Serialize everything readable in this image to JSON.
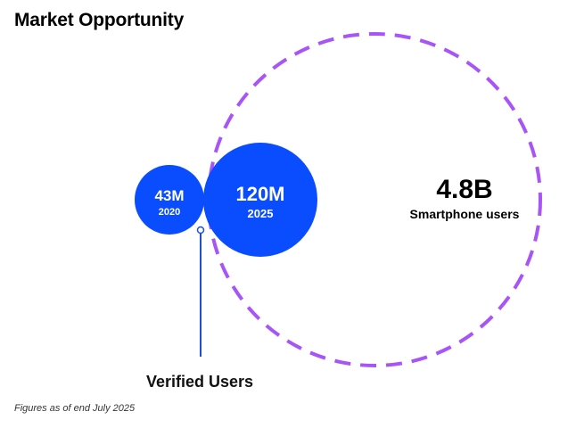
{
  "title": "Market Opportunity",
  "circles": {
    "verified_2020": {
      "value": "43M",
      "label": "2020"
    },
    "verified_2025": {
      "value": "120M",
      "label": "2025"
    },
    "smartphone": {
      "value": "4.8B",
      "label": "Smartphone users"
    }
  },
  "caption": "Verified Users",
  "footnote": "Figures as of end July 2025",
  "colors": {
    "filled_circle": "#0a4dff",
    "dashed_circle": "#a855f7",
    "connector": "#1f4fd8"
  }
}
